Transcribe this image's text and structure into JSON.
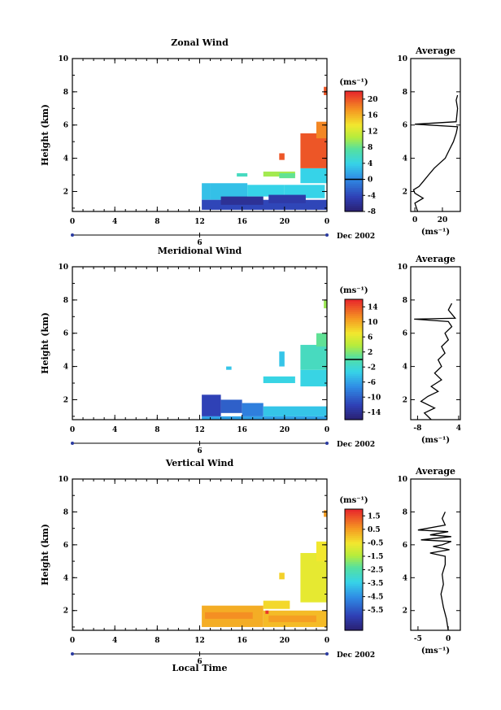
{
  "figure": {
    "date_label": "Dec 2002",
    "xlabel": "Local Time"
  },
  "chart_data": [
    {
      "type": "heatmap",
      "title": "Zonal Wind",
      "ylabel": "Height (km)",
      "x_ticks": [
        "0",
        "4",
        "8",
        "12",
        "16",
        "20",
        "0"
      ],
      "xlim": [
        0,
        24
      ],
      "ylim": [
        0.8,
        10
      ],
      "y_ticks": [
        "2",
        "4",
        "6",
        "8",
        "10"
      ],
      "day_tick": "6",
      "colorbar": {
        "unit": "(ms⁻¹)",
        "min": -8,
        "max": 22,
        "ticks": [
          "20",
          "16",
          "12",
          "8",
          "4",
          "0",
          "-4",
          "-8"
        ],
        "tick_values": [
          20,
          16,
          12,
          8,
          4,
          0,
          -4,
          -8
        ],
        "zero_line": 0
      },
      "cells": [
        [
          12.2,
          13.0,
          1.5,
          2.5,
          3
        ],
        [
          13.0,
          16.5,
          1.5,
          2.5,
          3
        ],
        [
          16.5,
          20.0,
          1.7,
          2.4,
          4
        ],
        [
          20.0,
          23.8,
          1.6,
          2.4,
          4
        ],
        [
          12.2,
          24.0,
          0.9,
          1.5,
          -4
        ],
        [
          14.0,
          18.0,
          1.2,
          1.7,
          -6
        ],
        [
          18.5,
          22.0,
          1.3,
          1.8,
          -5
        ],
        [
          18.0,
          21.0,
          2.9,
          3.2,
          10
        ],
        [
          19.5,
          21.0,
          2.8,
          3.1,
          8
        ],
        [
          21.5,
          24.0,
          2.5,
          3.4,
          4
        ],
        [
          21.5,
          24.0,
          3.4,
          5.5,
          20
        ],
        [
          23.0,
          24.0,
          5.2,
          6.2,
          18
        ],
        [
          19.5,
          20.0,
          3.9,
          4.3,
          20
        ],
        [
          23.7,
          24.0,
          7.8,
          8.3,
          20
        ],
        [
          15.5,
          16.5,
          2.9,
          3.1,
          6
        ]
      ],
      "profile": {
        "title": "Average",
        "xlabel": "(ms⁻¹)",
        "x_ticks": [
          "0",
          "20"
        ],
        "xlim": [
          -3,
          33
        ],
        "y_ticks": [
          "2",
          "4",
          "6",
          "8",
          "10"
        ],
        "points": [
          [
            2,
            0.8
          ],
          [
            0,
            1.3
          ],
          [
            6,
            1.6
          ],
          [
            0,
            1.9
          ],
          [
            -1,
            2.1
          ],
          [
            3,
            2.3
          ],
          [
            6,
            2.6
          ],
          [
            10,
            3.0
          ],
          [
            14,
            3.4
          ],
          [
            18,
            3.7
          ],
          [
            22,
            4.0
          ],
          [
            25,
            4.5
          ],
          [
            28,
            5.0
          ],
          [
            30,
            5.5
          ],
          [
            31,
            5.9
          ],
          [
            0,
            6.05
          ],
          [
            30,
            6.2
          ],
          [
            31,
            7.0
          ],
          [
            30,
            7.5
          ],
          [
            31,
            7.8
          ]
        ]
      }
    },
    {
      "type": "heatmap",
      "title": "Meridional Wind",
      "ylabel": "Height (km)",
      "x_ticks": [
        "0",
        "4",
        "8",
        "12",
        "16",
        "20",
        "0"
      ],
      "xlim": [
        0,
        24
      ],
      "ylim": [
        0.8,
        10
      ],
      "y_ticks": [
        "2",
        "4",
        "6",
        "8",
        "10"
      ],
      "day_tick": "6",
      "colorbar": {
        "unit": "(ms⁻¹)",
        "min": -16,
        "max": 16,
        "ticks": [
          "14",
          "10",
          "6",
          "2",
          "-2",
          "-6",
          "-10",
          "-14"
        ],
        "tick_values": [
          14,
          10,
          6,
          2,
          -2,
          -6,
          -10,
          -14
        ],
        "zero_line": 0
      },
      "cells": [
        [
          12.2,
          14.0,
          1.0,
          2.3,
          -12
        ],
        [
          14.0,
          16.0,
          1.2,
          2.0,
          -10
        ],
        [
          16.0,
          18.0,
          1.0,
          1.8,
          -8
        ],
        [
          18.0,
          24.0,
          1.0,
          1.6,
          -4
        ],
        [
          12.2,
          24.0,
          0.8,
          1.0,
          -6
        ],
        [
          18.0,
          21.0,
          3.0,
          3.4,
          -3
        ],
        [
          21.5,
          24.0,
          2.8,
          3.8,
          -3
        ],
        [
          21.5,
          24.0,
          3.8,
          5.3,
          -1
        ],
        [
          23.0,
          24.0,
          5.2,
          6.0,
          1
        ],
        [
          19.5,
          20.0,
          4.0,
          4.9,
          -4
        ],
        [
          14.5,
          15.0,
          3.8,
          4.0,
          -4
        ],
        [
          23.7,
          24.0,
          7.5,
          8.0,
          3
        ]
      ],
      "profile": {
        "title": "Average",
        "xlabel": "(ms⁻¹)",
        "x_ticks": [
          "-8",
          "4"
        ],
        "xlim": [
          -10,
          4.5
        ],
        "y_ticks": [
          "2",
          "4",
          "6",
          "8",
          "10"
        ],
        "points": [
          [
            -4,
            0.8
          ],
          [
            -6,
            1.2
          ],
          [
            -3,
            1.5
          ],
          [
            -7,
            1.9
          ],
          [
            -5,
            2.2
          ],
          [
            -2,
            2.5
          ],
          [
            -4,
            2.8
          ],
          [
            -1,
            3.2
          ],
          [
            -3,
            3.6
          ],
          [
            -1,
            4.0
          ],
          [
            -2,
            4.4
          ],
          [
            0,
            4.8
          ],
          [
            -1,
            5.2
          ],
          [
            1,
            5.6
          ],
          [
            0,
            6.0
          ],
          [
            2,
            6.4
          ],
          [
            1,
            6.7
          ],
          [
            -9,
            6.85
          ],
          [
            3,
            6.9
          ],
          [
            1,
            7.4
          ],
          [
            2,
            7.8
          ]
        ]
      }
    },
    {
      "type": "heatmap",
      "title": "Vertical Wind",
      "ylabel": "Height (km)",
      "x_ticks": [
        "0",
        "4",
        "8",
        "12",
        "16",
        "20",
        "0"
      ],
      "xlim": [
        0,
        24
      ],
      "ylim": [
        0.8,
        10
      ],
      "y_ticks": [
        "2",
        "4",
        "6",
        "8",
        "10"
      ],
      "day_tick": "6",
      "xlabel_shown": true,
      "colorbar": {
        "unit": "(ms⁻¹)",
        "min": -7,
        "max": 2,
        "ticks": [
          "1.5",
          "0.5",
          "-0.5",
          "-1.5",
          "-2.5",
          "-3.5",
          "-4.5",
          "-5.5"
        ],
        "tick_values": [
          1.5,
          0.5,
          -0.5,
          -1.5,
          -2.5,
          -3.5,
          -4.5,
          -5.5
        ],
        "zero_line": null
      },
      "cells": [
        [
          12.2,
          18.0,
          1.0,
          2.3,
          0.3
        ],
        [
          18.0,
          24.0,
          1.0,
          2.0,
          0.1
        ],
        [
          12.5,
          17.0,
          1.5,
          1.9,
          0.7
        ],
        [
          18.5,
          23.0,
          1.3,
          1.7,
          0.5
        ],
        [
          18.0,
          20.5,
          2.1,
          2.6,
          -0.3
        ],
        [
          21.5,
          24.0,
          2.5,
          5.5,
          -0.7
        ],
        [
          23.0,
          24.0,
          5.0,
          6.2,
          -0.5
        ],
        [
          19.5,
          20.0,
          3.9,
          4.3,
          -0.2
        ],
        [
          23.7,
          24.0,
          7.7,
          8.1,
          0.5
        ],
        [
          18.2,
          18.5,
          1.8,
          2.0,
          1.8
        ]
      ],
      "profile": {
        "title": "Average",
        "xlabel": "(ms⁻¹)",
        "x_ticks": [
          "-5",
          "0"
        ],
        "xlim": [
          -6.2,
          2
        ],
        "y_ticks": [
          "2",
          "4",
          "6",
          "8",
          "10"
        ],
        "points": [
          [
            0,
            0.8
          ],
          [
            -0.3,
            1.5
          ],
          [
            -0.8,
            2.2
          ],
          [
            -1.2,
            3.0
          ],
          [
            -0.8,
            3.6
          ],
          [
            -1,
            4.2
          ],
          [
            -0.5,
            4.8
          ],
          [
            -0.5,
            5.3
          ],
          [
            -3,
            5.5
          ],
          [
            0.2,
            5.7
          ],
          [
            -2.5,
            5.9
          ],
          [
            -1,
            6.0
          ],
          [
            0.5,
            6.2
          ],
          [
            -4.5,
            6.3
          ],
          [
            0.5,
            6.5
          ],
          [
            -3,
            6.6
          ],
          [
            0,
            6.8
          ],
          [
            -5,
            6.9
          ],
          [
            -0.5,
            7.2
          ],
          [
            -1,
            7.6
          ],
          [
            -0.5,
            8.0
          ]
        ]
      }
    }
  ]
}
